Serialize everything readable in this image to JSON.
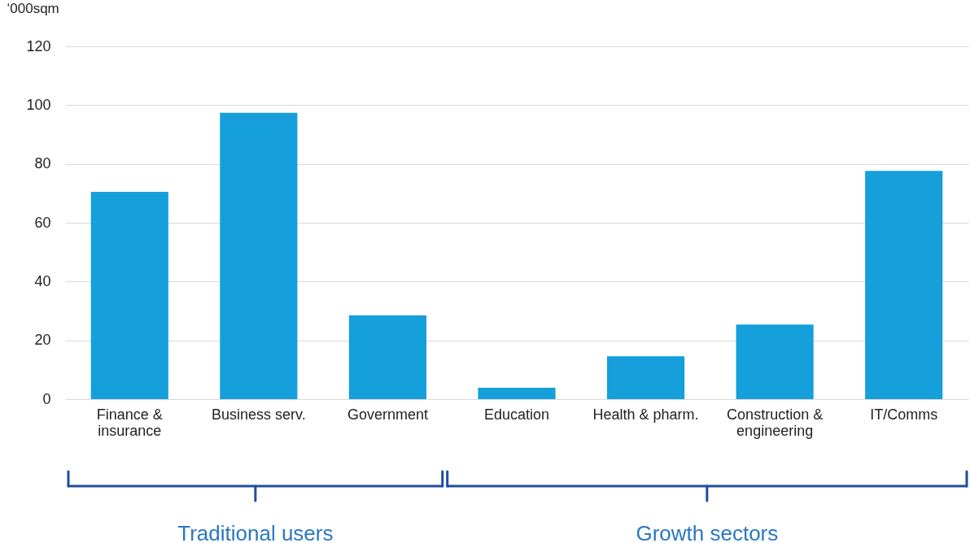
{
  "chart_data": {
    "type": "bar",
    "ylabel": "‘000sqm",
    "categories": [
      "Finance & insurance",
      "Business serv.",
      "Government",
      "Education",
      "Health & pharm.",
      "Construction & engineering",
      "IT/Comms"
    ],
    "values": [
      70.5,
      97.4,
      28.5,
      3.9,
      14.6,
      25.4,
      77.6
    ],
    "color": "#159fdb",
    "ylim": [
      0,
      120
    ],
    "yticks": [
      0,
      20,
      40,
      60,
      80,
      100,
      120
    ],
    "grid": "y",
    "annotations": [
      "Traditional users",
      "Growth sectors"
    ]
  }
}
